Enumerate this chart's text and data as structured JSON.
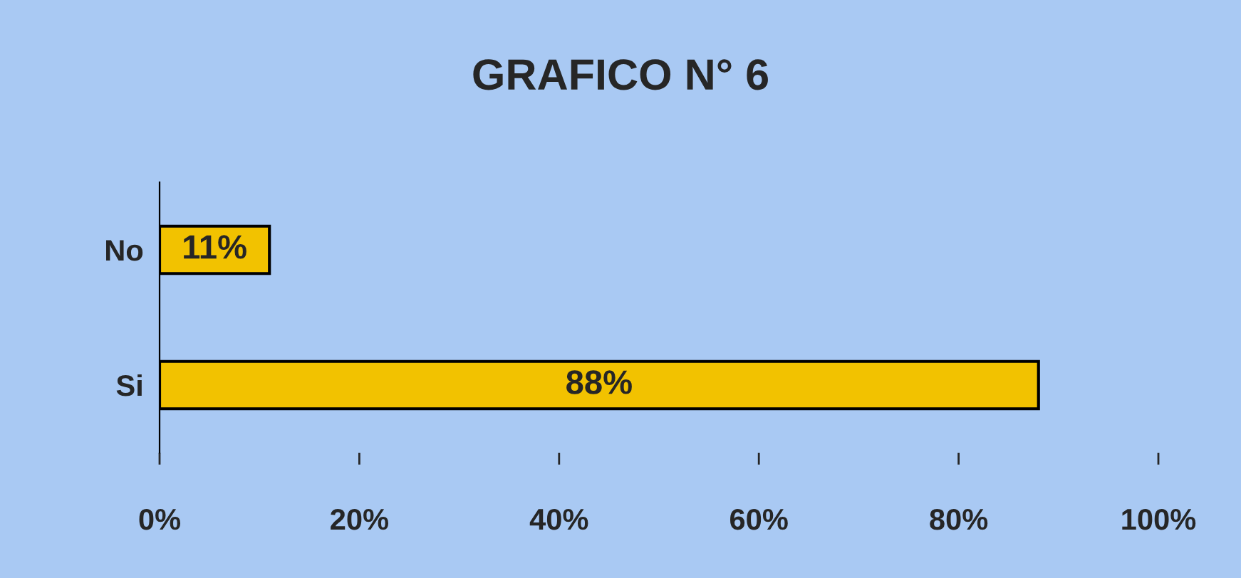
{
  "chart_data": {
    "type": "bar",
    "orientation": "horizontal",
    "title": "GRAFICO N° 6",
    "categories": [
      "No",
      "Si"
    ],
    "values": [
      11,
      88
    ],
    "value_labels": [
      "11%",
      "88%"
    ],
    "color": "#f2c200",
    "xlim": [
      0,
      100
    ],
    "xticks": [
      {
        "value": 0,
        "label": "0%"
      },
      {
        "value": 20,
        "label": "20%"
      },
      {
        "value": 40,
        "label": "40%"
      },
      {
        "value": 60,
        "label": "60%"
      },
      {
        "value": 80,
        "label": "80%"
      },
      {
        "value": 100,
        "label": "100%"
      }
    ],
    "grid": false,
    "legend": false
  }
}
